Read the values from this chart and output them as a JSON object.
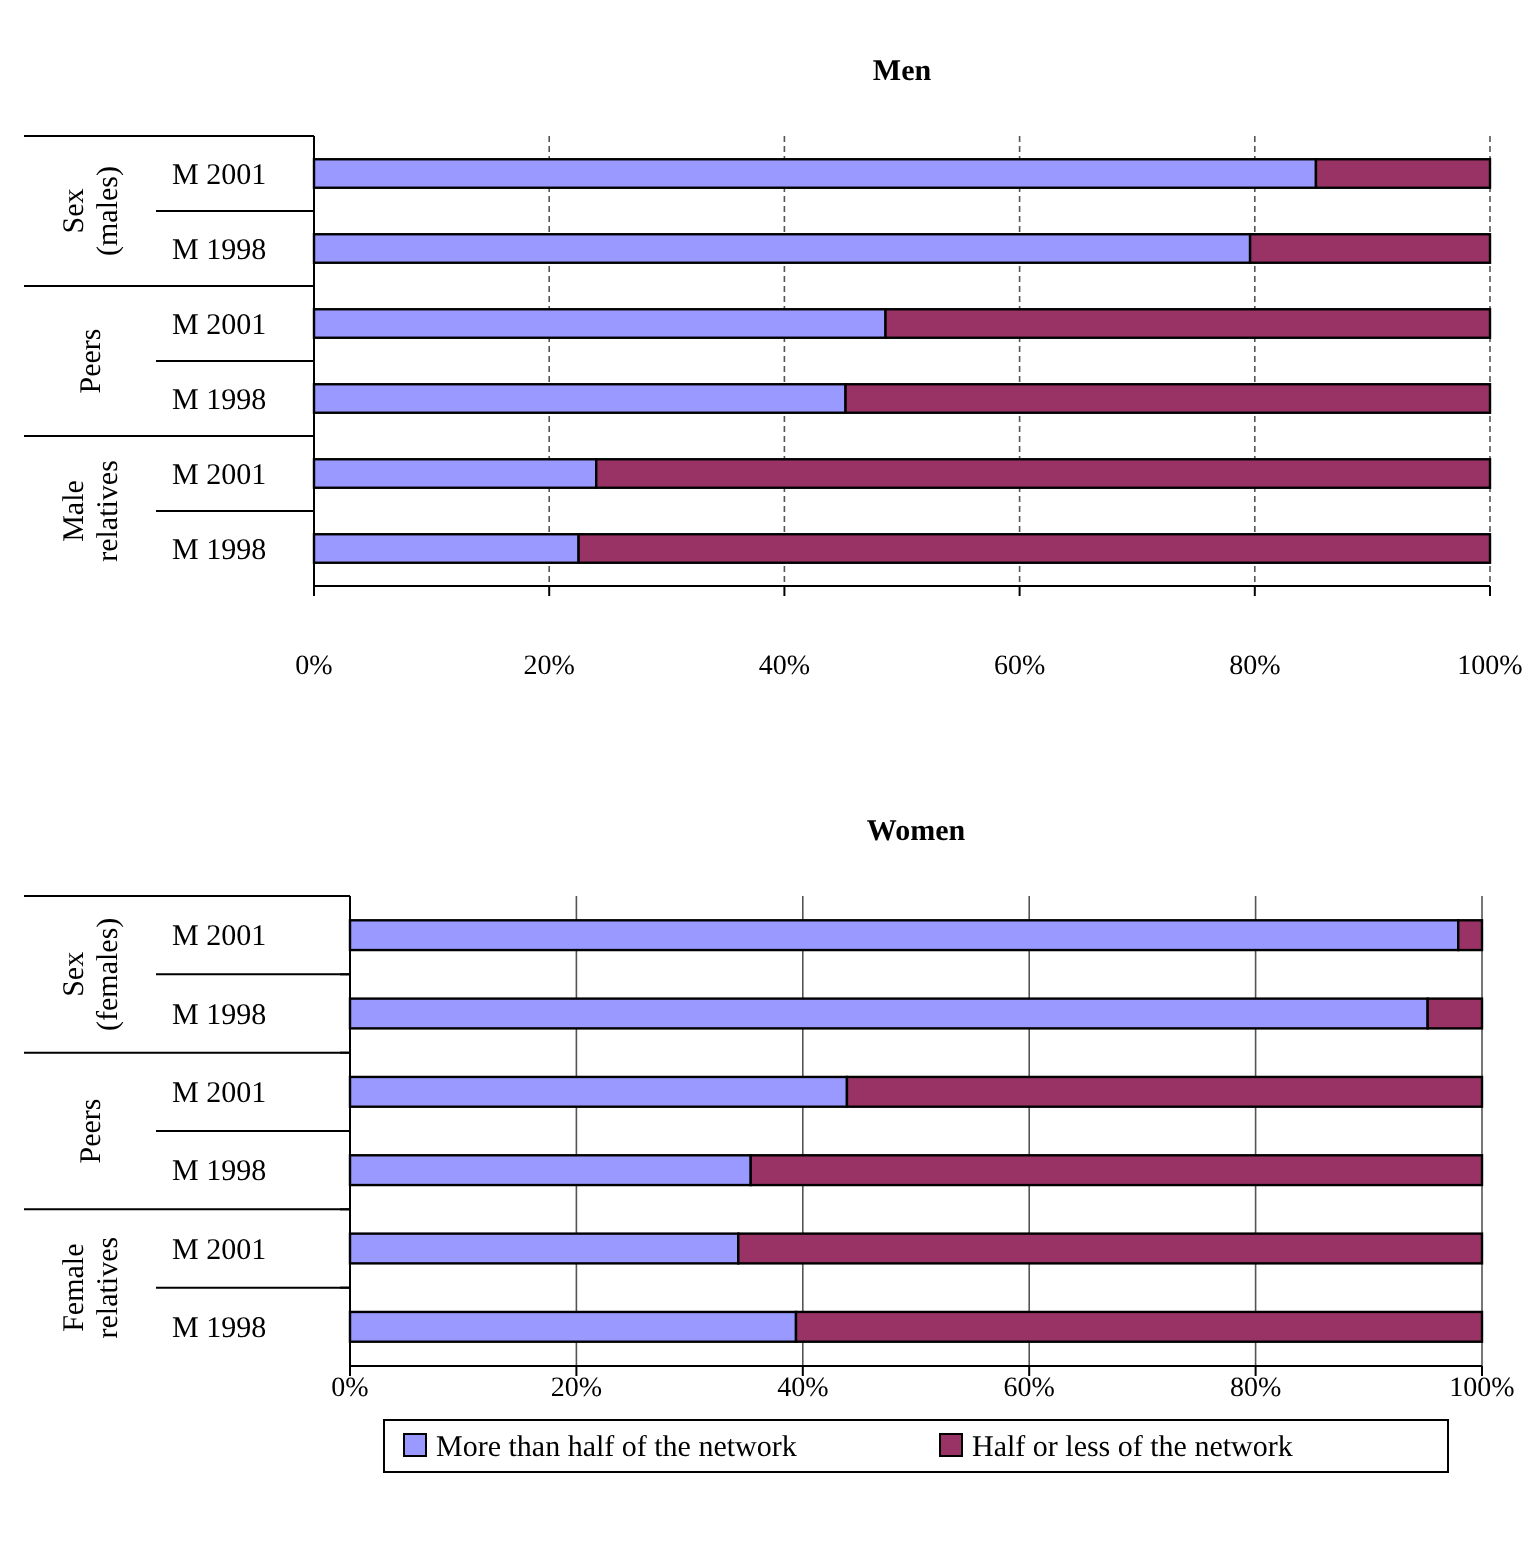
{
  "chart_data": [
    {
      "type": "bar",
      "title": "Men",
      "orientation": "horizontal",
      "stacked": true,
      "categories": [
        "M 2001",
        "M 1998",
        "M 2001",
        "M 1998",
        "M 2001",
        "M 1998"
      ],
      "annotations": [
        "Sex (males)",
        "Peers",
        "Male relatives"
      ],
      "series": [
        {
          "color": "#9999ff",
          "values": [
            85.2,
            79.6,
            48.6,
            45.2,
            24.0,
            22.5
          ]
        },
        {
          "color": "#993366",
          "values": [
            14.8,
            20.4,
            51.4,
            54.8,
            76.0,
            77.5
          ]
        }
      ],
      "xlim": [
        0,
        100
      ],
      "xticks": [
        {
          "value": 0,
          "label": "0%"
        },
        {
          "value": 20,
          "label": "20%"
        },
        {
          "value": 40,
          "label": "40%"
        },
        {
          "value": 60,
          "label": "60%"
        },
        {
          "value": 80,
          "label": "80%"
        },
        {
          "value": 100,
          "label": "100%"
        }
      ],
      "grid": "x",
      "legend": false
    },
    {
      "type": "bar",
      "title": "Women",
      "orientation": "horizontal",
      "stacked": true,
      "categories": [
        "M 2001",
        "M 1998",
        "M 2001",
        "M 1998",
        "M 2001",
        "M 1998"
      ],
      "annotations": [
        "Sex (females)",
        "Peers",
        "Female relatives"
      ],
      "series": [
        {
          "name": "More than half of the network",
          "color": "#9999ff",
          "values": [
            97.9,
            95.2,
            43.9,
            35.4,
            34.3,
            39.4
          ]
        },
        {
          "name": "Half or less of the network",
          "color": "#993366",
          "values": [
            2.1,
            4.8,
            56.1,
            64.6,
            65.7,
            60.6
          ]
        }
      ],
      "xlim": [
        0,
        100
      ],
      "xticks": [
        {
          "value": 0,
          "label": "0%"
        },
        {
          "value": 20,
          "label": "20%"
        },
        {
          "value": 40,
          "label": "40%"
        },
        {
          "value": 60,
          "label": "60%"
        },
        {
          "value": 80,
          "label": "80%"
        },
        {
          "value": 100,
          "label": "100%"
        }
      ],
      "grid": "x",
      "legend": "bottom"
    }
  ]
}
